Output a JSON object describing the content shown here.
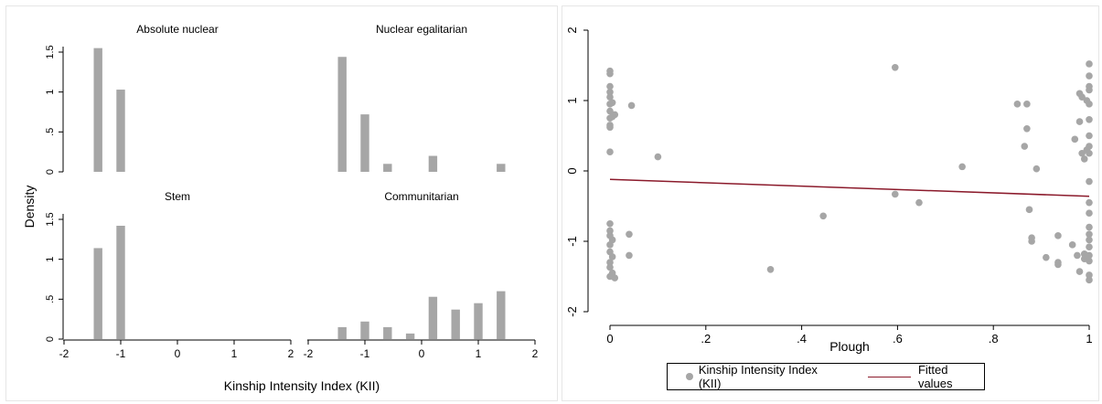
{
  "colors": {
    "bar": "#a6a6a6",
    "point": "#a6a6a6",
    "fit_line": "#8b1a2b",
    "axis": "#000000"
  },
  "chart_data": [
    {
      "type": "bar",
      "kind": "histogram-faceted",
      "ylabel": "Density",
      "xlabel": "Kinship Intensity Index (KII)",
      "xlim": [
        -2,
        2
      ],
      "ylim": [
        0,
        1.5
      ],
      "x_ticks": [
        "-2",
        "-1",
        "0",
        "1",
        "2"
      ],
      "y_ticks": [
        "0",
        ".5",
        "1",
        "1.5"
      ],
      "bin_width": 0.2,
      "panels": [
        {
          "title": "Absolute nuclear",
          "bins": [
            {
              "x": -1.4,
              "y": 1.55
            },
            {
              "x": -1.0,
              "y": 1.03
            }
          ]
        },
        {
          "title": "Nuclear egalitarian",
          "bins": [
            {
              "x": -1.4,
              "y": 1.44
            },
            {
              "x": -1.0,
              "y": 0.72
            },
            {
              "x": -0.6,
              "y": 0.1
            },
            {
              "x": 0.2,
              "y": 0.2
            },
            {
              "x": 1.4,
              "y": 0.1
            }
          ]
        },
        {
          "title": "Stem",
          "bins": [
            {
              "x": -1.4,
              "y": 1.14
            },
            {
              "x": -1.0,
              "y": 1.42
            }
          ]
        },
        {
          "title": "Communitarian",
          "bins": [
            {
              "x": -1.4,
              "y": 0.15
            },
            {
              "x": -1.0,
              "y": 0.22
            },
            {
              "x": -0.6,
              "y": 0.15
            },
            {
              "x": -0.2,
              "y": 0.07
            },
            {
              "x": 0.2,
              "y": 0.53
            },
            {
              "x": 0.6,
              "y": 0.37
            },
            {
              "x": 1.0,
              "y": 0.45
            },
            {
              "x": 1.4,
              "y": 0.6
            }
          ]
        }
      ]
    },
    {
      "type": "scatter",
      "xlabel": "Plough",
      "ylabel": "",
      "xlim": [
        0,
        1
      ],
      "ylim": [
        -2,
        2
      ],
      "x_ticks": [
        "0",
        ".2",
        ".4",
        ".6",
        ".8",
        "1"
      ],
      "y_ticks": [
        "-2",
        "-1",
        "0",
        "1",
        "2"
      ],
      "series": [
        {
          "name": "Kinship Intensity Index (KII)",
          "points": [
            [
              0,
              1.42
            ],
            [
              0,
              1.38
            ],
            [
              0,
              1.2
            ],
            [
              0,
              1.12
            ],
            [
              0,
              1.05
            ],
            [
              0.005,
              0.97
            ],
            [
              0,
              0.95
            ],
            [
              0,
              0.85
            ],
            [
              0.01,
              0.8
            ],
            [
              0.005,
              0.77
            ],
            [
              0,
              0.75
            ],
            [
              0,
              0.65
            ],
            [
              0,
              0.62
            ],
            [
              0,
              0.27
            ],
            [
              0,
              -0.75
            ],
            [
              0,
              -0.85
            ],
            [
              0,
              -0.92
            ],
            [
              0.005,
              -0.98
            ],
            [
              0,
              -1.05
            ],
            [
              0,
              -1.15
            ],
            [
              0.005,
              -1.22
            ],
            [
              0,
              -1.3
            ],
            [
              0,
              -1.37
            ],
            [
              0.005,
              -1.45
            ],
            [
              0,
              -1.5
            ],
            [
              0.01,
              -1.52
            ],
            [
              0.04,
              -0.9
            ],
            [
              0.04,
              -1.2
            ],
            [
              0.045,
              0.93
            ],
            [
              0.1,
              0.2
            ],
            [
              0.335,
              -1.4
            ],
            [
              0.445,
              -0.64
            ],
            [
              0.595,
              1.47
            ],
            [
              0.595,
              -0.33
            ],
            [
              0.645,
              -0.45
            ],
            [
              0.735,
              0.06
            ],
            [
              0.85,
              0.95
            ],
            [
              0.87,
              0.95
            ],
            [
              0.87,
              0.6
            ],
            [
              0.865,
              0.35
            ],
            [
              0.875,
              -0.55
            ],
            [
              0.88,
              -0.95
            ],
            [
              0.88,
              -1.0
            ],
            [
              0.89,
              0.03
            ],
            [
              0.91,
              -1.23
            ],
            [
              0.935,
              -0.92
            ],
            [
              0.935,
              -1.3
            ],
            [
              0.935,
              -1.33
            ],
            [
              0.965,
              -1.05
            ],
            [
              0.97,
              0.45
            ],
            [
              0.975,
              -1.2
            ],
            [
              0.98,
              -1.43
            ],
            [
              0.98,
              0.7
            ],
            [
              0.98,
              1.1
            ],
            [
              0.985,
              1.05
            ],
            [
              0.985,
              0.25
            ],
            [
              0.99,
              -1.18
            ],
            [
              0.99,
              0.17
            ],
            [
              0.99,
              -1.25
            ],
            [
              0.995,
              1.0
            ],
            [
              0.995,
              0.3
            ],
            [
              1,
              1.52
            ],
            [
              1,
              1.35
            ],
            [
              1,
              1.2
            ],
            [
              1,
              1.15
            ],
            [
              1,
              0.95
            ],
            [
              1,
              0.73
            ],
            [
              1,
              0.5
            ],
            [
              1,
              0.35
            ],
            [
              1,
              0.25
            ],
            [
              1,
              -0.15
            ],
            [
              1,
              -0.45
            ],
            [
              1,
              -0.6
            ],
            [
              1,
              -0.8
            ],
            [
              1,
              -0.9
            ],
            [
              1,
              -0.98
            ],
            [
              1,
              -1.08
            ],
            [
              1,
              -1.2
            ],
            [
              1,
              -1.28
            ],
            [
              1,
              -1.48
            ],
            [
              1,
              -1.55
            ]
          ]
        },
        {
          "name": "Fitted values",
          "line": [
            [
              0,
              -0.12
            ],
            [
              1,
              -0.36
            ]
          ]
        }
      ],
      "legend_position": "bottom"
    }
  ],
  "legend": {
    "kii_label": "Kinship Intensity Index (KII)",
    "fit_label": "Fitted values"
  }
}
